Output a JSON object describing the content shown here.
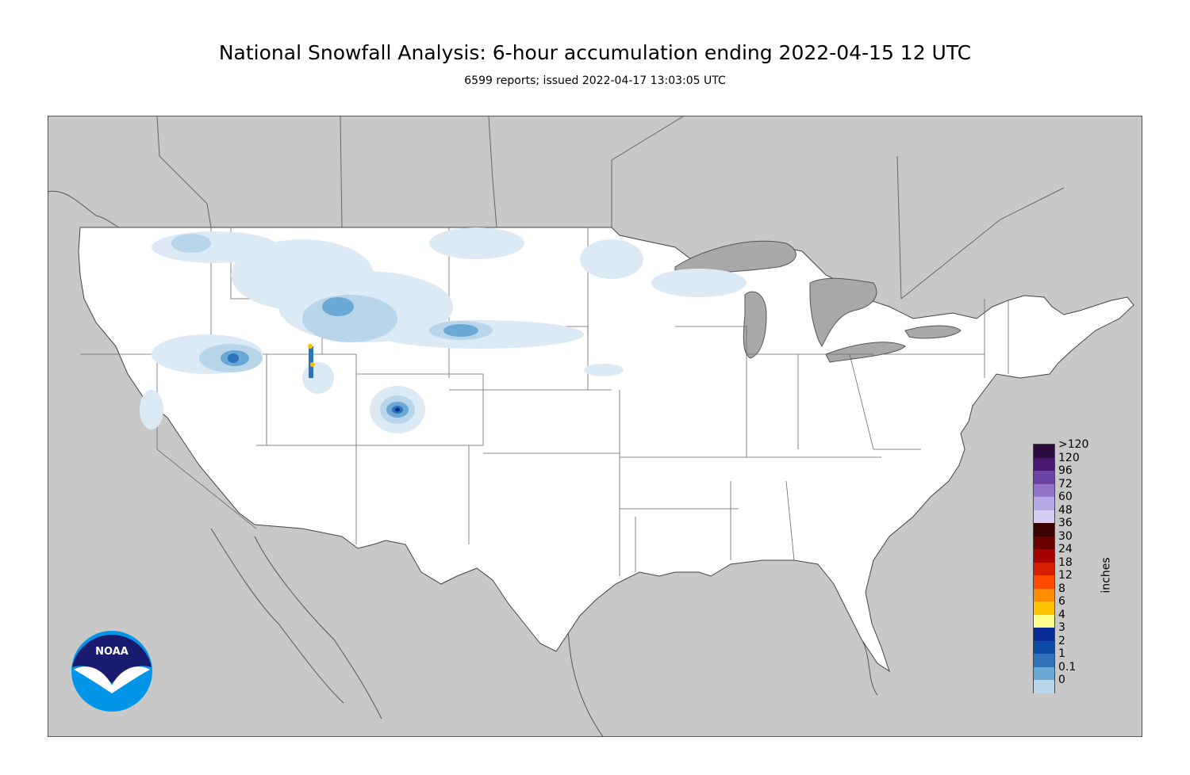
{
  "title": "National Snowfall Analysis: 6-hour accumulation ending 2022-04-15 12 UTC",
  "subtitle": "6599 reports; issued 2022-04-17 13:03:05 UTC",
  "colors": {
    "land_outside": "#c8c8c8",
    "conus": "#ffffff",
    "water": "#a8a8a8",
    "borders": "#444444"
  },
  "legend": {
    "units": "inches",
    "bins": [
      {
        "label": ">120",
        "color": "#2a0a3f"
      },
      {
        "label": "120",
        "color": "#4a1870"
      },
      {
        "label": "96",
        "color": "#6b45a3"
      },
      {
        "label": "72",
        "color": "#9275c9"
      },
      {
        "label": "60",
        "color": "#b8a8e6"
      },
      {
        "label": "48",
        "color": "#d5cdf5"
      },
      {
        "label": "36",
        "color": "#3b0000"
      },
      {
        "label": "30",
        "color": "#6b0000"
      },
      {
        "label": "24",
        "color": "#a60000"
      },
      {
        "label": "18",
        "color": "#d71e00"
      },
      {
        "label": "12",
        "color": "#ff4a00"
      },
      {
        "label": "8",
        "color": "#ff8c00"
      },
      {
        "label": "6",
        "color": "#ffc200"
      },
      {
        "label": "4",
        "color": "#ffff8c"
      },
      {
        "label": "3",
        "color": "#082d96"
      },
      {
        "label": "2",
        "color": "#0b4ba6"
      },
      {
        "label": "1",
        "color": "#2d73b9"
      },
      {
        "label": "0.1",
        "color": "#6aa8d6"
      },
      {
        "label": "0",
        "color": "#b8d5ea"
      }
    ]
  },
  "logo": {
    "text": "NOAA",
    "icon": "noaa-logo"
  }
}
